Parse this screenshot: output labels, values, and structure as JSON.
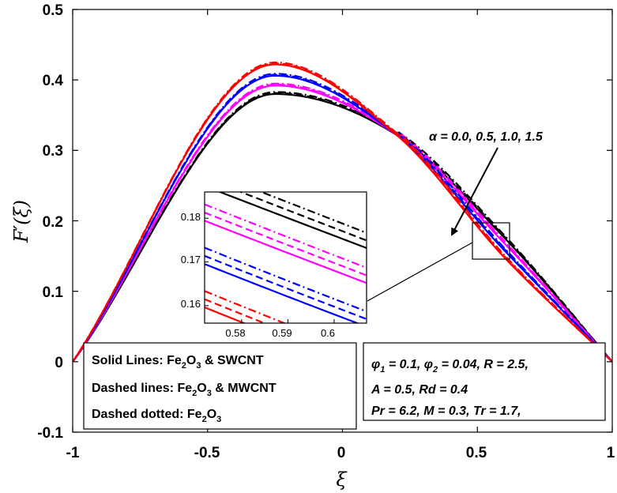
{
  "chart_data": {
    "type": "line",
    "xlabel": "ξ",
    "ylabel": "F′(ξ)",
    "xlim": [
      -1,
      1
    ],
    "ylim": [
      -0.1,
      0.5
    ],
    "xticks": [
      "-1",
      "-0.5",
      "0",
      "0.5",
      "1"
    ],
    "yticks": [
      "0.5",
      "0.4",
      "0.3",
      "0.2",
      "0.1",
      "0",
      "-0.1"
    ],
    "series": [
      {
        "name": "α = 0.0, Fe2O3 & SWCNT",
        "color": "#000000",
        "style": "solid",
        "peak": 0.38,
        "values_at": {
          "x": [
            -1,
            -0.25,
            0.2,
            0.6,
            1
          ],
          "y": [
            0,
            0.38,
            0.322,
            0.176,
            0
          ]
        }
      },
      {
        "name": "α = 0.5, Fe2O3 & SWCNT",
        "color": "#ff00ff",
        "style": "solid",
        "peak": 0.392,
        "values_at": {
          "x": [
            -1,
            -0.25,
            0.2,
            0.6,
            1
          ],
          "y": [
            0,
            0.392,
            0.322,
            0.168,
            0
          ]
        }
      },
      {
        "name": "α = 1.0, Fe2O3 & SWCNT",
        "color": "#0000ff",
        "style": "solid",
        "peak": 0.406,
        "values_at": {
          "x": [
            -1,
            -0.25,
            0.2,
            0.6,
            1
          ],
          "y": [
            0,
            0.406,
            0.322,
            0.158,
            0
          ]
        }
      },
      {
        "name": "α = 1.5, Fe2O3 & SWCNT",
        "color": "#ff0000",
        "style": "solid",
        "peak": 0.422,
        "values_at": {
          "x": [
            -1,
            -0.25,
            0.2,
            0.6,
            1
          ],
          "y": [
            0,
            0.422,
            0.322,
            0.148,
            0
          ]
        }
      }
    ],
    "legend_box": {
      "solid": "Solid Lines: Fe",
      "solid_suffix": " & SWCNT",
      "dashed": "Dashed lines: Fe",
      "dashed_suffix": " &  MWCNT",
      "dashdot": "Dashed dotted: Fe",
      "fe_sub": "2",
      "o": "O",
      "o_sub": "3"
    },
    "params": {
      "line1_a": "φ",
      "line1_a_sub": "1",
      "line1_b": " = 0.1, φ",
      "line1_b_sub": "2",
      "line1_c": " = 0.04, R = 2.5,",
      "line2": "A = 0.5,   Rd = 0.4",
      "line3": "Pr = 6.2, M = 0.3, Tr = 1.7,"
    },
    "alpha_annotation": "α = 0.0, 0.5, 1.0, 1.5",
    "inset": {
      "xlim": [
        0.572,
        0.607
      ],
      "ylim": [
        0.156,
        0.186
      ],
      "xticks": [
        "0.58",
        "0.59",
        "0.6"
      ],
      "yticks": [
        "0.18",
        "0.17",
        "0.16"
      ]
    }
  }
}
